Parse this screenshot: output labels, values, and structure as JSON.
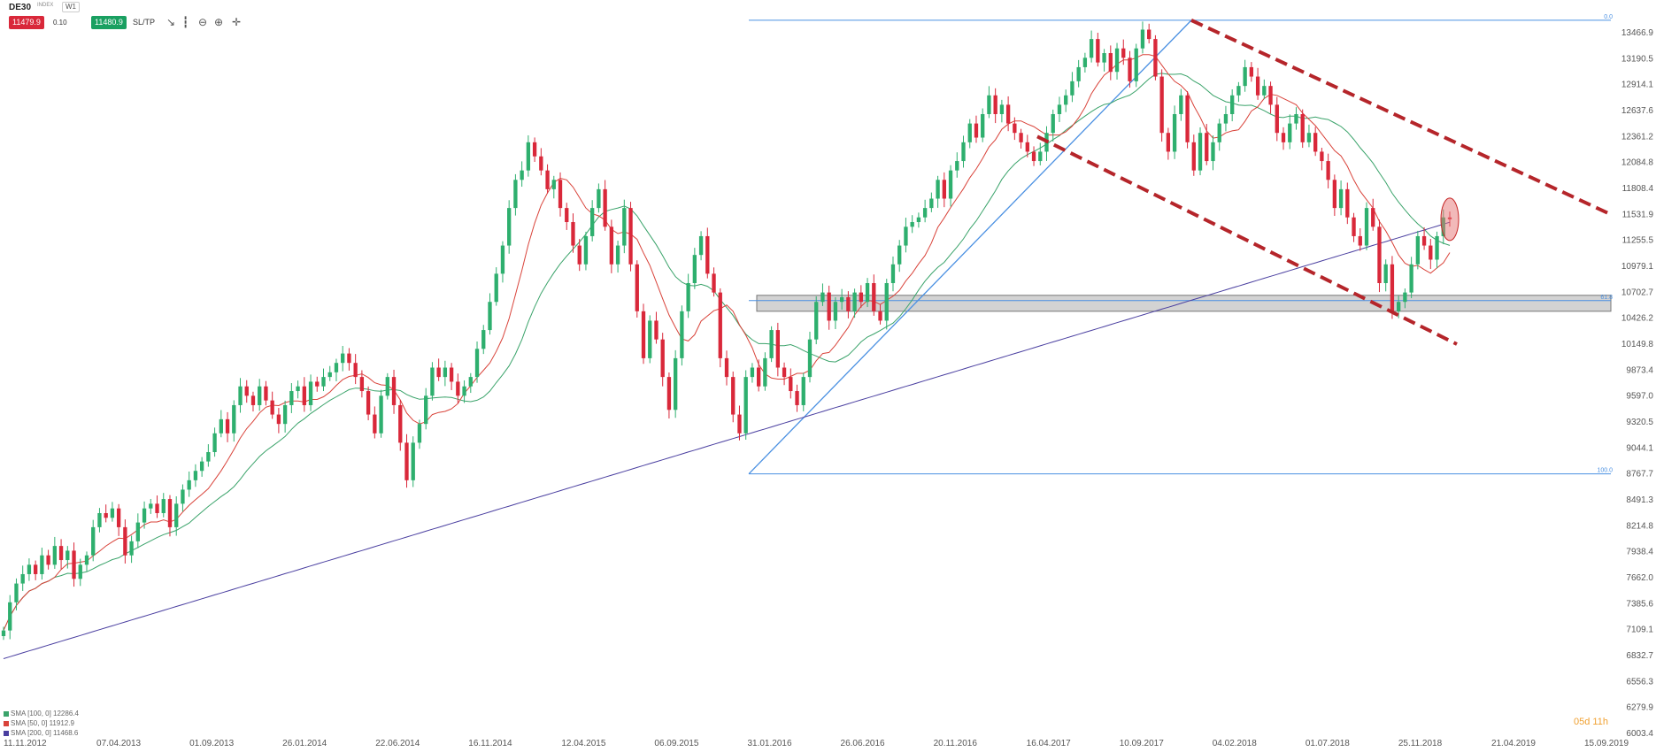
{
  "toolbar": {
    "symbol": "DE30",
    "tag": "INDEX",
    "interval": "W1",
    "sell_price": "11479.9",
    "volume": "0.10",
    "buy_price": "11480.9",
    "sltp_label": "SL/TP",
    "icons": [
      "line-chart-icon",
      "candlestick-icon",
      "zoom-out-icon",
      "zoom-in-icon",
      "crosshair-icon"
    ]
  },
  "timer": "05d 11h",
  "colors": {
    "up": "#2eaf6e",
    "down": "#d9283a",
    "sma100": "#3aa36a",
    "sma50": "#d9433a",
    "sma200": "#4a3fa0",
    "fib": "#4a90e2",
    "trend": "#b5252a",
    "zone_fill": "#9e9e9e"
  },
  "indicators": [
    {
      "label": "SMA [100, 0] 12286.4"
    },
    {
      "label": "SMA [50, 0] 11912.9"
    },
    {
      "label": "SMA [200, 0] 11468.6"
    }
  ],
  "chart_data": {
    "type": "candlestick",
    "symbol": "DE30",
    "timeframe": "W1",
    "ylim": [
      6003.4,
      13743.0
    ],
    "y_ticks": [
      "13466.9",
      "13190.5",
      "12914.1",
      "12637.6",
      "12361.2",
      "12084.8",
      "11808.4",
      "11531.9",
      "11255.5",
      "10979.1",
      "10702.7",
      "10426.2",
      "10149.8",
      "9873.4",
      "9597.0",
      "9320.5",
      "9044.1",
      "8767.7",
      "8491.3",
      "8214.8",
      "7938.4",
      "7662.0",
      "7385.6",
      "7109.1",
      "6832.7",
      "6556.3",
      "6279.9",
      "6003.4"
    ],
    "x_ticks": [
      "11.11.2012",
      "07.04.2013",
      "01.09.2013",
      "26.01.2014",
      "22.06.2014",
      "16.11.2014",
      "12.04.2015",
      "06.09.2015",
      "31.01.2016",
      "26.06.2016",
      "20.11.2016",
      "16.04.2017",
      "10.09.2017",
      "04.02.2018",
      "01.07.2018",
      "25.11.2018",
      "21.04.2019",
      "15.09.2019"
    ],
    "x_range": [
      "11.11.2012",
      "15.09.2019"
    ],
    "closes": [
      7100,
      7400,
      7600,
      7700,
      7800,
      7700,
      7900,
      7800,
      8000,
      7850,
      7950,
      7650,
      7800,
      7900,
      8200,
      8350,
      8300,
      8400,
      8200,
      7900,
      8050,
      8250,
      8400,
      8450,
      8350,
      8500,
      8200,
      8450,
      8600,
      8700,
      8800,
      8900,
      9000,
      9200,
      9350,
      9200,
      9500,
      9700,
      9600,
      9500,
      9700,
      9550,
      9400,
      9300,
      9500,
      9650,
      9700,
      9500,
      9750,
      9700,
      9800,
      9850,
      9950,
      10050,
      9950,
      9800,
      9650,
      9400,
      9200,
      9600,
      9800,
      9500,
      9100,
      8700,
      9100,
      9300,
      9600,
      9900,
      9800,
      9900,
      9750,
      9600,
      9700,
      9800,
      10100,
      10300,
      10600,
      10900,
      11200,
      11600,
      11900,
      12000,
      12300,
      12150,
      12000,
      11800,
      11900,
      11600,
      11450,
      11200,
      11000,
      11300,
      11600,
      11800,
      11400,
      11000,
      11200,
      11600,
      11000,
      10500,
      10000,
      10400,
      10200,
      9800,
      9450,
      10000,
      10500,
      10800,
      11100,
      11300,
      10900,
      10700,
      10000,
      9800,
      9400,
      9200,
      9800,
      9900,
      9700,
      10000,
      10300,
      9900,
      9800,
      9650,
      9500,
      9800,
      10200,
      10600,
      10700,
      10400,
      10600,
      10650,
      10500,
      10700,
      10600,
      10800,
      10500,
      10400,
      10800,
      11000,
      11200,
      11400,
      11450,
      11500,
      11600,
      11700,
      11900,
      11700,
      12000,
      12100,
      12300,
      12500,
      12350,
      12600,
      12800,
      12600,
      12700,
      12500,
      12400,
      12300,
      12200,
      12100,
      12200,
      12400,
      12600,
      12700,
      12800,
      12950,
      13100,
      13200,
      13400,
      13150,
      13250,
      13050,
      13300,
      13200,
      12950,
      13300,
      13500,
      13400,
      13000,
      12400,
      12200,
      12600,
      12800,
      12300,
      12000,
      12400,
      12100,
      12300,
      12500,
      12600,
      12800,
      12900,
      13100,
      13000,
      12800,
      12900,
      12700,
      12400,
      12300,
      12500,
      12600,
      12300,
      12400,
      12200,
      12100,
      11900,
      11600,
      11800,
      11500,
      11300,
      11200,
      11600,
      11400,
      10800,
      11000,
      10500,
      10600,
      10700,
      11000,
      11300,
      11200,
      11050,
      11300,
      11500,
      11480
    ],
    "sma": [
      {
        "name": "SMA [100, 0] 12286.4",
        "period": 100
      },
      {
        "name": "SMA [50, 0] 11912.9",
        "period": 50
      },
      {
        "name": "SMA [200, 0] 11468.6",
        "period": 200
      }
    ],
    "fibonacci": {
      "low": 8767.7,
      "high": 13600,
      "labels": [
        "0.0",
        "61.8",
        "100.0"
      ]
    },
    "support_zone": [
      10500,
      10670
    ],
    "trend_channel": {
      "style": "dashed",
      "upper_line": [
        [
          13600,
          13600
        ],
        [
          11550,
          11550
        ]
      ]
    },
    "annotation": "highlighted latest candle near SMA 200",
    "grid": false
  }
}
